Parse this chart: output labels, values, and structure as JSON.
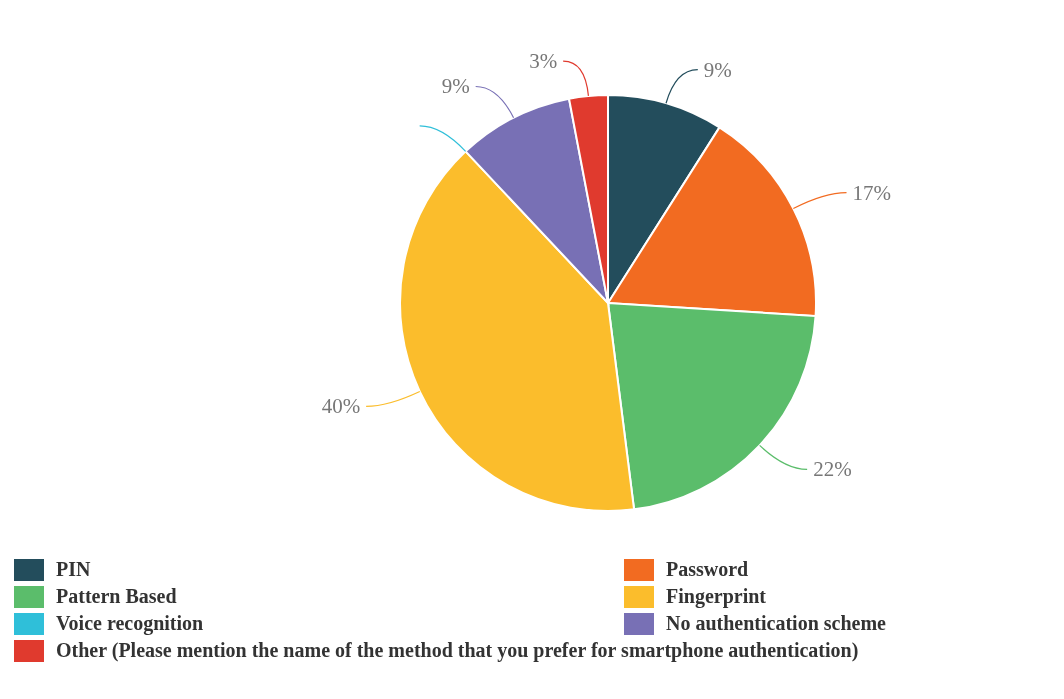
{
  "chart_data": {
    "type": "pie",
    "categories": [
      "PIN",
      "Password",
      "Pattern Based",
      "Fingerprint",
      "Voice recognition",
      "No authentication scheme",
      "Other (Please mention the name of the method that you prefer for smartphone authentication)"
    ],
    "values": [
      9,
      17,
      22,
      40,
      0,
      9,
      3
    ],
    "value_labels": [
      "9%",
      "17%",
      "22%",
      "40%",
      null,
      "9%",
      "3%"
    ],
    "colors": [
      "#234d5c",
      "#f26b21",
      "#5bbd6b",
      "#fbbd2c",
      "#2fbfd9",
      "#7870b5",
      "#e03a2e"
    ],
    "legend": "bottom"
  }
}
